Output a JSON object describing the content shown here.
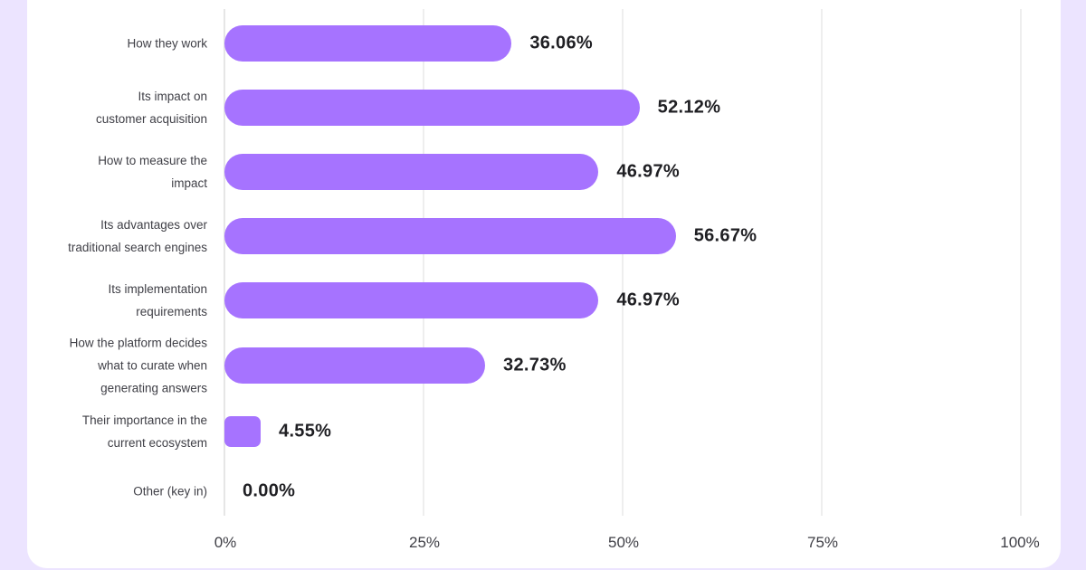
{
  "chart_data": {
    "type": "bar",
    "orientation": "horizontal",
    "categories": [
      "How they work",
      "Its impact on customer acquisition",
      "How to measure the impact",
      "Its advantages over traditional search engines",
      "Its implementation requirements",
      "How the platform decides what to curate when generating answers",
      "Their importance in the current ecosystem",
      "Other (key in)"
    ],
    "values": [
      36.06,
      52.12,
      46.97,
      56.67,
      46.97,
      32.73,
      4.55,
      0.0
    ],
    "value_labels": [
      "36.06%",
      "52.12%",
      "46.97%",
      "56.67%",
      "46.97%",
      "32.73%",
      "4.55%",
      "0.00%"
    ],
    "xlabel": "",
    "ylabel": "",
    "xlim": [
      0,
      100
    ],
    "x_ticks": [
      "0%",
      "25%",
      "50%",
      "75%",
      "100%"
    ],
    "grid": "vertical",
    "legend": null,
    "bar_color": "#A673FF"
  },
  "rows": [
    {
      "label_lines": [
        "How they work"
      ],
      "value": "36.06%",
      "pct": 36.06
    },
    {
      "label_lines": [
        "Its impact on",
        "customer acquisition"
      ],
      "value": "52.12%",
      "pct": 52.12
    },
    {
      "label_lines": [
        "How to measure the",
        "impact"
      ],
      "value": "46.97%",
      "pct": 46.97
    },
    {
      "label_lines": [
        "Its advantages over",
        "traditional search engines"
      ],
      "value": "56.67%",
      "pct": 56.67
    },
    {
      "label_lines": [
        "Its implementation",
        "requirements"
      ],
      "value": "46.97%",
      "pct": 46.97
    },
    {
      "label_lines": [
        "How the platform decides",
        "what to curate when",
        "generating answers"
      ],
      "value": "32.73%",
      "pct": 32.73
    },
    {
      "label_lines": [
        "Their importance in the",
        "current ecosystem"
      ],
      "value": "4.55%",
      "pct": 4.55
    },
    {
      "label_lines": [
        "Other (key in)"
      ],
      "value": "0.00%",
      "pct": 0
    }
  ],
  "axis": {
    "ticks": [
      "0%",
      "25%",
      "50%",
      "75%",
      "100%"
    ]
  },
  "colors": {
    "background": "#ECE4FF",
    "card": "#FFFFFF",
    "bar": "#A673FF",
    "value_text": "#1F1F23",
    "label_text": "#3F3F46",
    "gridline": "#EEEEEE"
  }
}
